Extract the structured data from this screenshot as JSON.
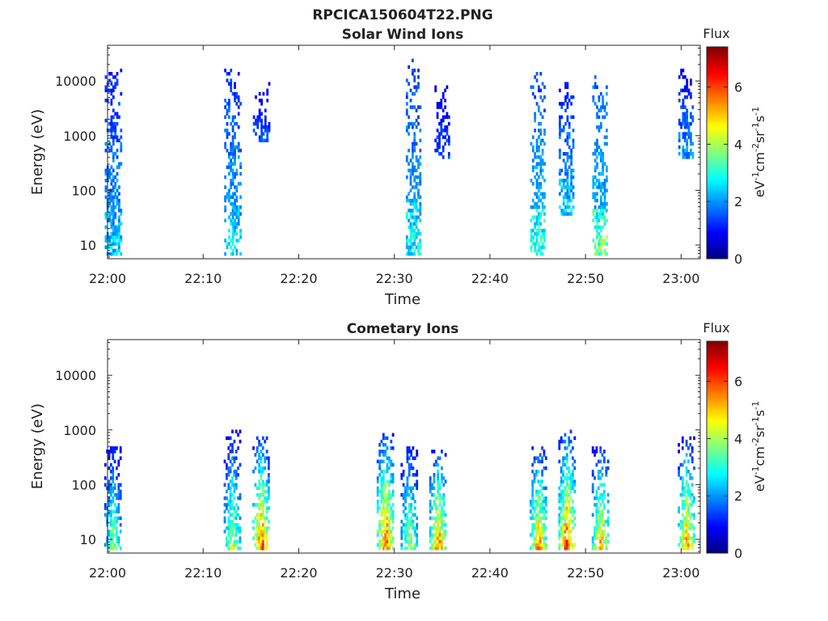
{
  "figure": {
    "title": "RPCICA150604T22.PNG"
  },
  "chart_data": [
    {
      "type": "heatmap",
      "title": "Solar Wind Ions",
      "xlabel": "Time",
      "ylabel": "Energy (eV)",
      "x_tick_labels": [
        "22:00",
        "22:10",
        "22:20",
        "22:30",
        "22:40",
        "22:50",
        "23:00"
      ],
      "y_tick_labels": [
        "10",
        "100",
        "1000",
        "10000"
      ],
      "y_scale": "log",
      "colorbar": {
        "title": "Flux",
        "label": "eV⁻¹cm⁻²sr⁻¹s⁻¹",
        "ticks": [
          "0",
          "2",
          "4",
          "6"
        ],
        "range": [
          0,
          7.4
        ],
        "colormap": "jet"
      },
      "bursts": [
        {
          "time": "22:00.5",
          "energy_range": [
            7,
            15000
          ],
          "peak_flux": 3.0
        },
        {
          "time": "22:13",
          "energy_range": [
            7,
            15000
          ],
          "peak_flux": 3.2
        },
        {
          "time": "22:16",
          "energy_range": [
            800,
            9000
          ],
          "peak_flux": 1.8
        },
        {
          "time": "22:32",
          "energy_range": [
            7,
            24000
          ],
          "peak_flux": 3.4
        },
        {
          "time": "22:35",
          "energy_range": [
            400,
            8000
          ],
          "peak_flux": 1.8
        },
        {
          "time": "22:45",
          "energy_range": [
            7,
            13000
          ],
          "peak_flux": 3.8
        },
        {
          "time": "22:48",
          "energy_range": [
            40,
            9000
          ],
          "peak_flux": 3.0
        },
        {
          "time": "22:51.5",
          "energy_range": [
            7,
            13000
          ],
          "peak_flux": 4.4
        },
        {
          "time": "23:00.5",
          "energy_range": [
            400,
            15000
          ],
          "peak_flux": 2.4
        }
      ]
    },
    {
      "type": "heatmap",
      "title": "Cometary Ions",
      "xlabel": "Time",
      "ylabel": "Energy (eV)",
      "x_tick_labels": [
        "22:00",
        "22:10",
        "22:20",
        "22:30",
        "22:40",
        "22:50",
        "23:00"
      ],
      "y_tick_labels": [
        "10",
        "100",
        "1000",
        "10000"
      ],
      "y_scale": "log",
      "colorbar": {
        "title": "Flux",
        "label": "eV⁻¹cm⁻²sr⁻¹s⁻¹",
        "ticks": [
          "0",
          "2",
          "4",
          "6"
        ],
        "range": [
          0,
          7.4
        ],
        "colormap": "jet"
      },
      "bursts": [
        {
          "time": "22:00.5",
          "energy_range": [
            7,
            500
          ],
          "peak_flux": 4.6
        },
        {
          "time": "22:13",
          "energy_range": [
            7,
            900
          ],
          "peak_flux": 5.0
        },
        {
          "time": "22:16",
          "energy_range": [
            7,
            700
          ],
          "peak_flux": 7.0
        },
        {
          "time": "22:29",
          "energy_range": [
            7,
            800
          ],
          "peak_flux": 7.2
        },
        {
          "time": "22:31.5",
          "energy_range": [
            7,
            500
          ],
          "peak_flux": 5.0
        },
        {
          "time": "22:34.5",
          "energy_range": [
            7,
            400
          ],
          "peak_flux": 6.8
        },
        {
          "time": "22:45",
          "energy_range": [
            7,
            500
          ],
          "peak_flux": 6.4
        },
        {
          "time": "22:48",
          "energy_range": [
            7,
            900
          ],
          "peak_flux": 7.2
        },
        {
          "time": "22:51.5",
          "energy_range": [
            7,
            500
          ],
          "peak_flux": 6.2
        },
        {
          "time": "23:00.5",
          "energy_range": [
            7,
            700
          ],
          "peak_flux": 6.4
        }
      ]
    }
  ]
}
